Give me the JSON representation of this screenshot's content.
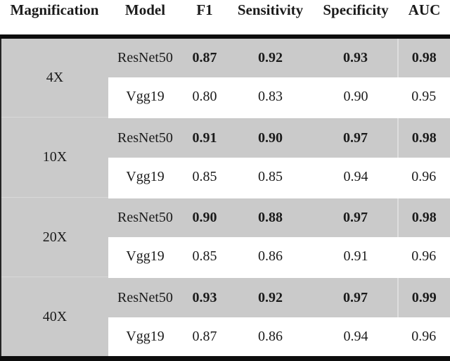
{
  "table": {
    "columns": [
      "Magnification",
      "Model",
      "F1",
      "Sensitivity",
      "Specificity",
      "AUC"
    ],
    "groups": [
      {
        "magnification": "4X",
        "rows": [
          {
            "model": "ResNet50",
            "f1": "0.87",
            "sensitivity": "0.92",
            "specificity": "0.93",
            "auc": "0.98",
            "emphasis": "bold"
          },
          {
            "model": "Vgg19",
            "f1": "0.80",
            "sensitivity": "0.83",
            "specificity": "0.90",
            "auc": "0.95",
            "emphasis": "regular"
          }
        ]
      },
      {
        "magnification": "10X",
        "rows": [
          {
            "model": "ResNet50",
            "f1": "0.91",
            "sensitivity": "0.90",
            "specificity": "0.97",
            "auc": "0.98",
            "emphasis": "bold"
          },
          {
            "model": "Vgg19",
            "f1": "0.85",
            "sensitivity": "0.85",
            "specificity": "0.94",
            "auc": "0.96",
            "emphasis": "regular"
          }
        ]
      },
      {
        "magnification": "20X",
        "rows": [
          {
            "model": "ResNet50",
            "f1": "0.90",
            "sensitivity": "0.88",
            "specificity": "0.97",
            "auc": "0.98",
            "emphasis": "bold"
          },
          {
            "model": "Vgg19",
            "f1": "0.85",
            "sensitivity": "0.86",
            "specificity": "0.91",
            "auc": "0.96",
            "emphasis": "regular"
          }
        ]
      },
      {
        "magnification": "40X",
        "rows": [
          {
            "model": "ResNet50",
            "f1": "0.93",
            "sensitivity": "0.92",
            "specificity": "0.97",
            "auc": "0.99",
            "emphasis": "bold"
          },
          {
            "model": "Vgg19",
            "f1": "0.87",
            "sensitivity": "0.86",
            "specificity": "0.94",
            "auc": "0.96",
            "emphasis": "regular"
          }
        ]
      }
    ]
  },
  "colors": {
    "row_shade": "#cacaca",
    "rule": "#0d0d0d",
    "text": "#1b1b1b"
  }
}
